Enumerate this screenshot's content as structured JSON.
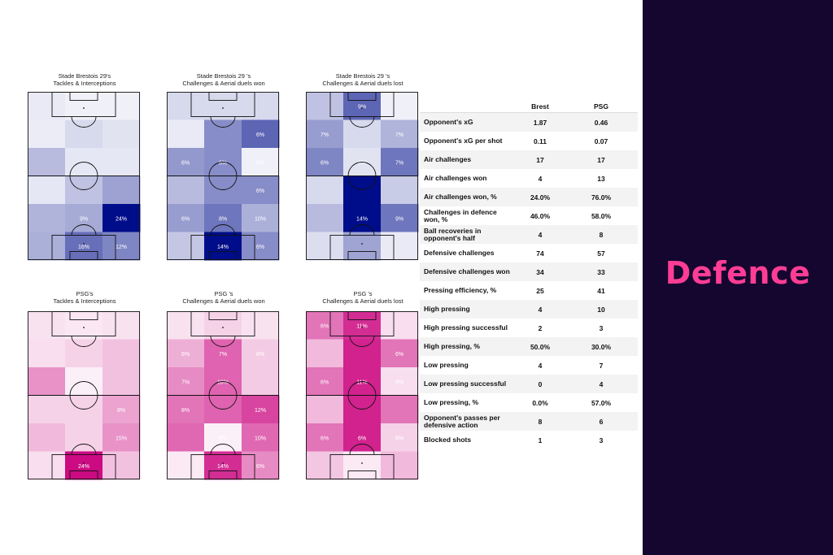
{
  "sidebar": {
    "title": "Defence"
  },
  "colors": {
    "brest": "#000d8a",
    "psg": "#cc0a82",
    "sidebar_bg": "#15062f",
    "accent": "#ff3d95"
  },
  "chart_data": [
    {
      "type": "heatmap",
      "team": "brest",
      "title": "Stade Brestois 29's\nTackles & Interceptions",
      "cells": [
        [
          0.05,
          0.02,
          0.02
        ],
        [
          0.04,
          0.12,
          0.08
        ],
        [
          0.25,
          0.06,
          0.06
        ],
        [
          0.06,
          0.22,
          0.36
        ],
        [
          0.28,
          0.32,
          1.0
        ],
        [
          0.3,
          0.58,
          0.48
        ]
      ],
      "labels": [
        [
          "",
          "",
          ""
        ],
        [
          "",
          "",
          ""
        ],
        [
          "",
          "",
          ""
        ],
        [
          "",
          "",
          ""
        ],
        [
          "",
          "9%",
          "24%"
        ],
        [
          "",
          "16%",
          "12%"
        ]
      ]
    },
    {
      "type": "heatmap",
      "team": "brest",
      "title": "Stade Brestois 29 's\nChallenges & Aerial duels won",
      "cells": [
        [
          0.12,
          0.12,
          0.12
        ],
        [
          0.05,
          0.45,
          0.62
        ],
        [
          0.4,
          0.45,
          0.02
        ],
        [
          0.25,
          0.45,
          0.45
        ],
        [
          0.38,
          0.55,
          0.3
        ],
        [
          0.2,
          1.0,
          0.45
        ]
      ],
      "labels": [
        [
          "",
          "",
          ""
        ],
        [
          "",
          "",
          "6%"
        ],
        [
          "6%",
          "6%",
          "6%"
        ],
        [
          "",
          "",
          "6%"
        ],
        [
          "6%",
          "8%",
          "10%"
        ],
        [
          "",
          "14%",
          "6%"
        ]
      ]
    },
    {
      "type": "heatmap",
      "team": "brest",
      "title": "Stade Brestois 29 's\nChallenges & Aerial duels lost",
      "cells": [
        [
          0.22,
          0.62,
          0.02
        ],
        [
          0.38,
          0.12,
          0.28
        ],
        [
          0.48,
          0.08,
          0.55
        ],
        [
          0.12,
          1.0,
          0.18
        ],
        [
          0.25,
          1.0,
          0.55
        ],
        [
          0.1,
          0.35,
          0.05
        ]
      ],
      "labels": [
        [
          "",
          "9%",
          ""
        ],
        [
          "7%",
          "",
          "7%"
        ],
        [
          "6%",
          "6%",
          "7%"
        ],
        [
          "",
          "",
          ""
        ],
        [
          "",
          "14%",
          "9%"
        ],
        [
          "",
          "",
          ""
        ]
      ]
    },
    {
      "type": "heatmap",
      "team": "psg",
      "title": "PSG's\nTackles & Interceptions",
      "cells": [
        [
          0.08,
          0.06,
          0.08
        ],
        [
          0.1,
          0.15,
          0.22
        ],
        [
          0.42,
          0.02,
          0.22
        ],
        [
          0.15,
          0.15,
          0.35
        ],
        [
          0.25,
          0.15,
          0.42
        ],
        [
          0.1,
          1.0,
          0.22
        ]
      ],
      "labels": [
        [
          "",
          "",
          ""
        ],
        [
          "",
          "",
          ""
        ],
        [
          "",
          "",
          ""
        ],
        [
          "",
          "",
          "8%"
        ],
        [
          "",
          "",
          "15%"
        ],
        [
          "",
          "24%",
          ""
        ]
      ]
    },
    {
      "type": "heatmap",
      "team": "psg",
      "title": "PSG 's\nChallenges & Aerial duels won",
      "cells": [
        [
          0.08,
          0.15,
          0.08
        ],
        [
          0.3,
          0.62,
          0.18
        ],
        [
          0.45,
          0.62,
          0.18
        ],
        [
          0.55,
          0.62,
          0.75
        ],
        [
          0.6,
          0.02,
          0.6
        ],
        [
          0.05,
          0.85,
          0.45
        ]
      ],
      "labels": [
        [
          "",
          "",
          ""
        ],
        [
          "6%",
          "7%",
          "8%"
        ],
        [
          "7%",
          "10%",
          ""
        ],
        [
          "8%",
          "",
          "12%"
        ],
        [
          "",
          "8%",
          "10%"
        ],
        [
          "",
          "14%",
          "6%"
        ]
      ]
    },
    {
      "type": "heatmap",
      "team": "psg",
      "title": "PSG 's\nChallenges & Aerial duels lost",
      "cells": [
        [
          0.55,
          0.85,
          0.1
        ],
        [
          0.25,
          0.9,
          0.55
        ],
        [
          0.55,
          0.9,
          0.1
        ],
        [
          0.25,
          0.9,
          0.55
        ],
        [
          0.55,
          0.9,
          0.15
        ],
        [
          0.2,
          0.05,
          0.25
        ]
      ],
      "labels": [
        [
          "6%",
          "11%",
          ""
        ],
        [
          "",
          "",
          "6%"
        ],
        [
          "6%",
          "11%",
          "6%"
        ],
        [
          "",
          "",
          ""
        ],
        [
          "6%",
          "6%",
          "6%"
        ],
        [
          "",
          "",
          ""
        ]
      ]
    }
  ],
  "stats": {
    "headers": [
      "Brest",
      "PSG"
    ],
    "rows": [
      {
        "label": "Opponent's xG",
        "brest": "1.87",
        "psg": "0.46"
      },
      {
        "label": "Opponent's xG per shot",
        "brest": "0.11",
        "psg": "0.07"
      },
      {
        "label": "Air challenges",
        "brest": "17",
        "psg": "17"
      },
      {
        "label": "Air challenges won",
        "brest": "4",
        "psg": "13"
      },
      {
        "label": "Air challenges won, %",
        "brest": "24.0%",
        "psg": "76.0%"
      },
      {
        "label": "Challenges in defence won, %",
        "brest": "46.0%",
        "psg": "58.0%"
      },
      {
        "label": "Ball recoveries in opponent's half",
        "brest": "4",
        "psg": "8"
      },
      {
        "label": "Defensive challenges",
        "brest": "74",
        "psg": "57"
      },
      {
        "label": "Defensive challenges won",
        "brest": "34",
        "psg": "33"
      },
      {
        "label": "Pressing efficiency, %",
        "brest": "25",
        "psg": "41"
      },
      {
        "label": "High pressing",
        "brest": "4",
        "psg": "10"
      },
      {
        "label": "High pressing successful",
        "brest": "2",
        "psg": "3"
      },
      {
        "label": "High pressing, %",
        "brest": "50.0%",
        "psg": "30.0%"
      },
      {
        "label": "Low pressing",
        "brest": "4",
        "psg": "7"
      },
      {
        "label": "Low pressing successful",
        "brest": "0",
        "psg": "4"
      },
      {
        "label": "Low pressing, %",
        "brest": "0.0%",
        "psg": "57.0%"
      },
      {
        "label": "Opponent's passes per defensive action",
        "brest": "8",
        "psg": "6"
      },
      {
        "label": "Blocked shots",
        "brest": "1",
        "psg": "3"
      }
    ]
  }
}
